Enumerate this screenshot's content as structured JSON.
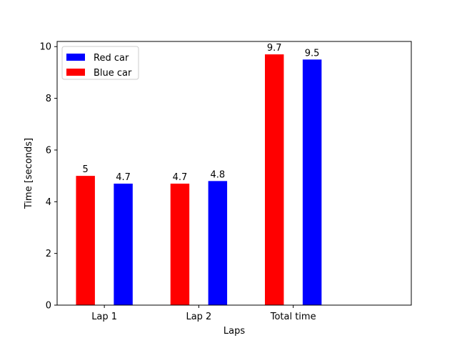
{
  "chart_data": {
    "type": "bar",
    "title": "",
    "xlabel": "Laps",
    "ylabel": "Time [seconds]",
    "categories": [
      "Lap 1",
      "Lap 2",
      "Total time"
    ],
    "ylim": [
      0,
      10.2
    ],
    "yticks": [
      0,
      2,
      4,
      6,
      8,
      10
    ],
    "grid": false,
    "legend_position": "top-left",
    "series": [
      {
        "name": "Blue car",
        "color": "#ff0000",
        "values": [
          5,
          4.7,
          9.7
        ],
        "labels": [
          "5",
          "4.7",
          "9.7"
        ]
      },
      {
        "name": "Red car",
        "color": "#0000ff",
        "values": [
          4.7,
          4.8,
          9.5
        ],
        "labels": [
          "4.7",
          "4.8",
          "9.5"
        ]
      }
    ],
    "legend": [
      {
        "name": "Red car",
        "color": "#0000ff"
      },
      {
        "name": "Blue car",
        "color": "#ff0000"
      }
    ]
  }
}
